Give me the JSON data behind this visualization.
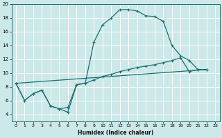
{
  "xlabel": "Humidex (Indice chaleur)",
  "bg_color": "#cce8e8",
  "grid_color": "#ffffff",
  "line_color": "#1a6e6e",
  "xlim": [
    -0.5,
    23.5
  ],
  "ylim": [
    3.0,
    20.0
  ],
  "xticks": [
    0,
    1,
    2,
    3,
    4,
    5,
    6,
    7,
    8,
    9,
    10,
    11,
    12,
    13,
    14,
    15,
    16,
    17,
    18,
    19,
    20,
    21,
    22,
    23
  ],
  "yticks": [
    4,
    6,
    8,
    10,
    12,
    14,
    16,
    18,
    20
  ],
  "series1_x": [
    0,
    1,
    2,
    3,
    4,
    5,
    6,
    7,
    8,
    9,
    10,
    11,
    12,
    13,
    14,
    15,
    16,
    17,
    18,
    19,
    20,
    21,
    22
  ],
  "series1_y": [
    8.5,
    6.0,
    7.0,
    7.5,
    5.2,
    4.8,
    4.3,
    8.3,
    8.5,
    14.5,
    17.0,
    18.0,
    19.2,
    19.2,
    19.0,
    18.3,
    18.2,
    17.5,
    14.0,
    12.5,
    11.8,
    10.5,
    10.5
  ],
  "series2_x": [
    0,
    1,
    2,
    3,
    4,
    5,
    6,
    7,
    8,
    9,
    10,
    11,
    12,
    13,
    14,
    15,
    16,
    17,
    18,
    19,
    20,
    21,
    22
  ],
  "series2_y": [
    8.5,
    6.0,
    7.0,
    7.5,
    5.2,
    4.8,
    5.0,
    8.3,
    8.5,
    9.0,
    9.5,
    9.8,
    10.2,
    10.5,
    10.8,
    11.0,
    11.2,
    11.5,
    11.8,
    12.2,
    10.2,
    10.5,
    10.5
  ],
  "series3_x": [
    0,
    22
  ],
  "series3_y": [
    8.5,
    10.5
  ]
}
